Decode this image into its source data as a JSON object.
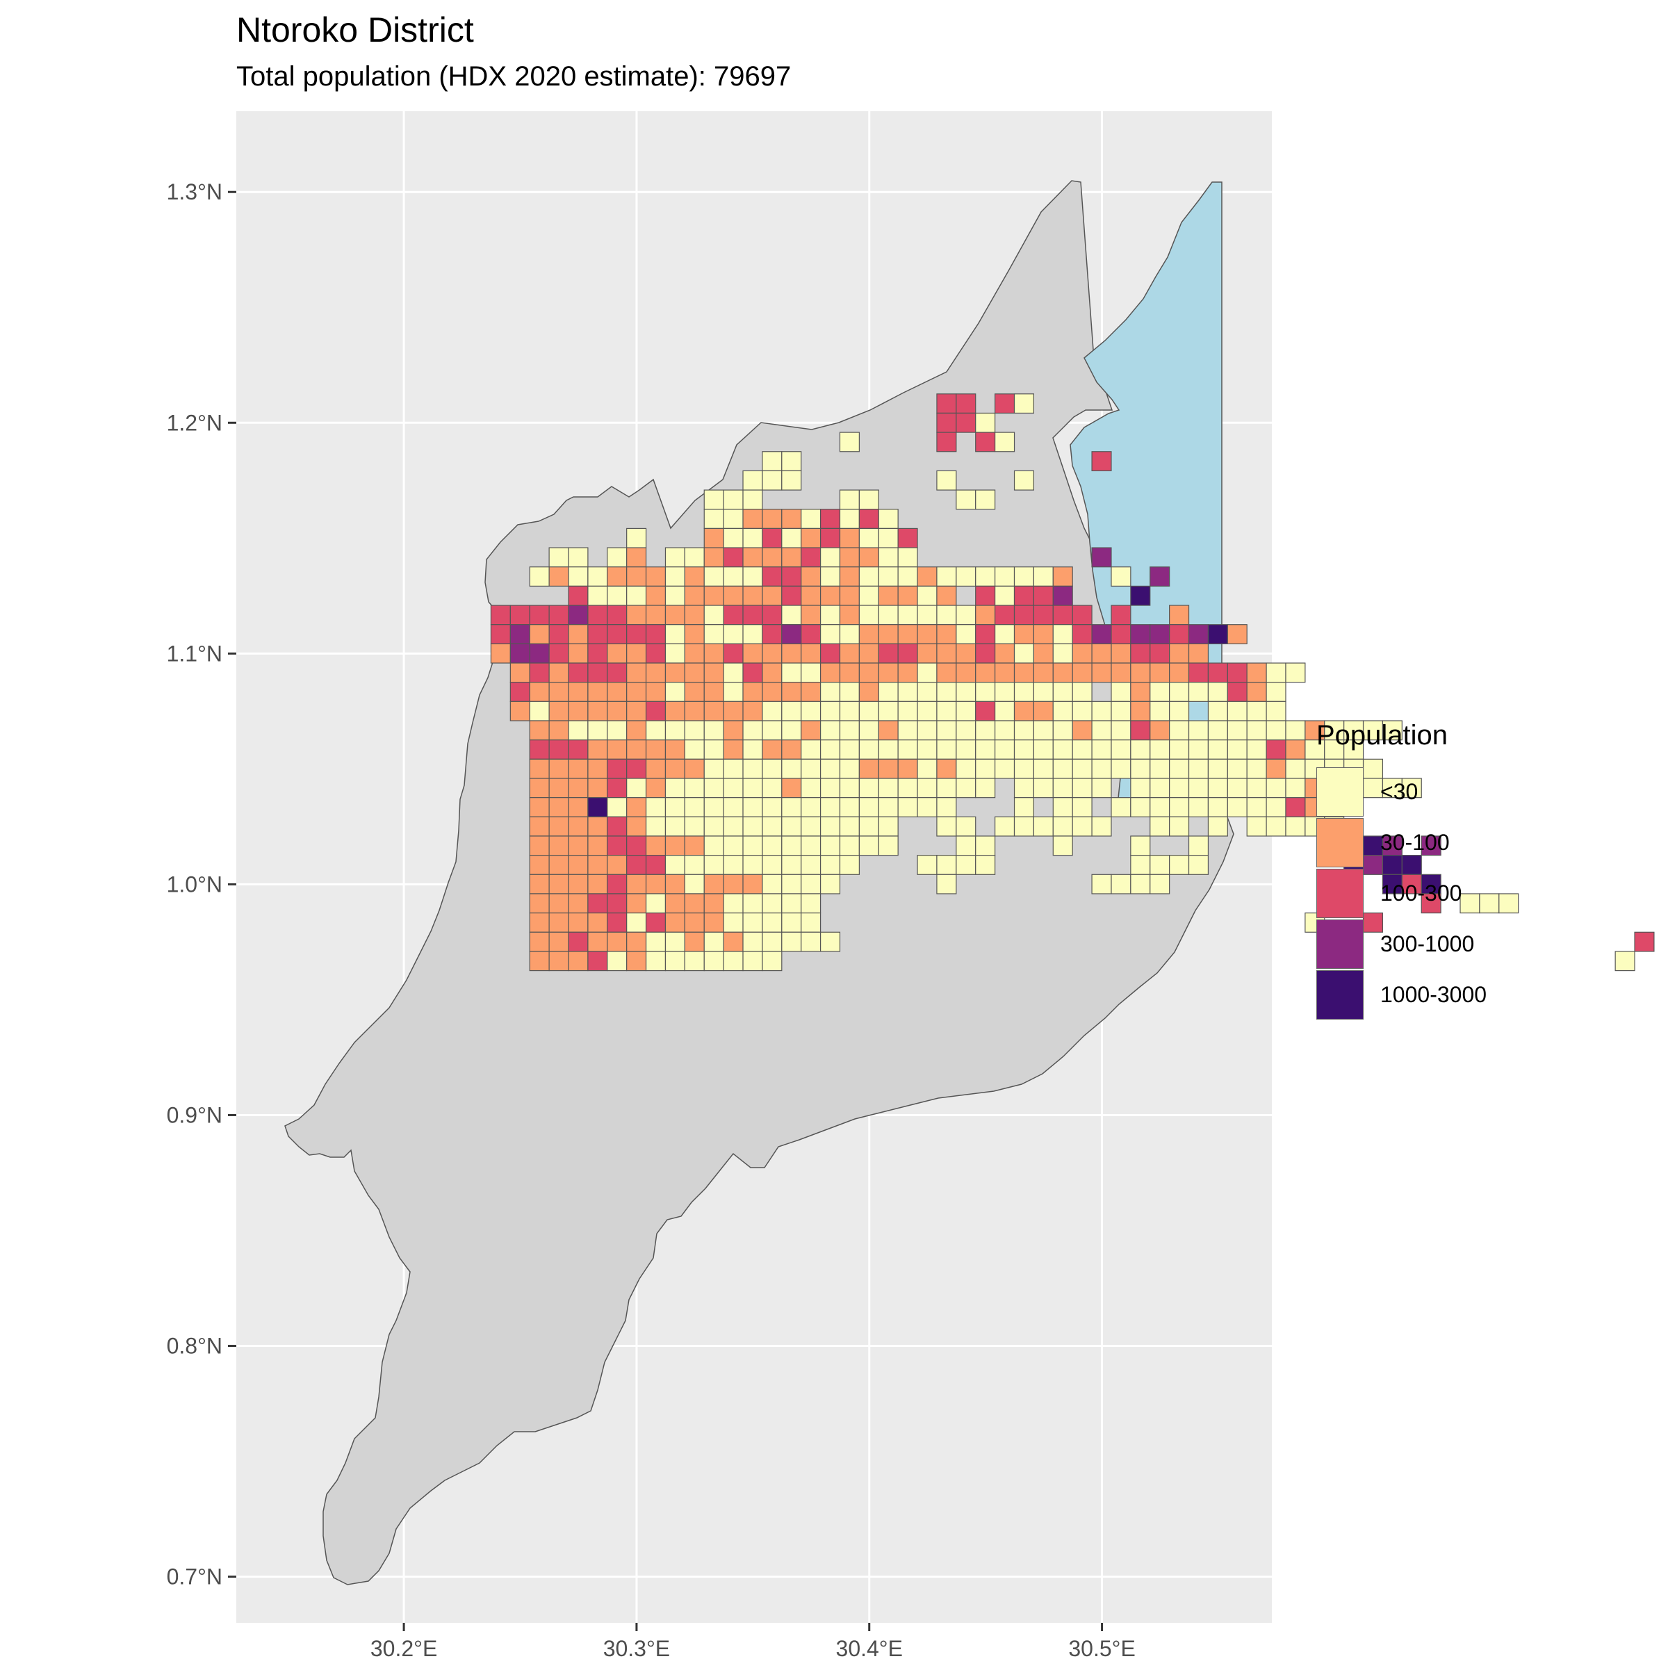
{
  "title": "Ntoroko District",
  "subtitle": "Total population (HDX 2020 estimate): 79697",
  "colors": {
    "panel_bg": "#ebebeb",
    "land": "#d3d3d3",
    "water": "#add8e6",
    "border": "#555555",
    "grid": "#ffffff"
  },
  "legend": {
    "title": "Population",
    "items": [
      {
        "label": "<30",
        "color": "#fcfdbf"
      },
      {
        "label": "30-100",
        "color": "#fc9f6c"
      },
      {
        "label": "100-300",
        "color": "#de4968"
      },
      {
        "label": "300-1000",
        "color": "#8c2981"
      },
      {
        "label": "1000-3000",
        "color": "#3b0f70"
      }
    ]
  },
  "chart_data": {
    "type": "heatmap",
    "title": "Ntoroko District",
    "subtitle": "Total population (HDX 2020 estimate): 79697",
    "x_ticks": [
      "30.2°E",
      "30.3°E",
      "30.4°E",
      "30.5°E"
    ],
    "y_ticks": [
      "0.7°N",
      "0.8°N",
      "0.9°N",
      "1.0°N",
      "1.1°N",
      "1.2°N",
      "1.3°N"
    ],
    "xlim": [
      30.128,
      30.573
    ],
    "ylim": [
      0.68,
      1.335
    ],
    "x_tick_values": [
      30.2,
      30.3,
      30.4,
      30.5
    ],
    "y_tick_values": [
      0.7,
      0.8,
      0.9,
      1.0,
      1.1,
      1.2,
      1.3
    ],
    "grid": true,
    "legend_position": "right",
    "cell_size_deg": 0.00833,
    "grid_origin": {
      "lon": 30.1708,
      "lat": 1.2125
    },
    "class_codes": {
      "1": "<30",
      "2": "30-100",
      "3": "100-300",
      "4": "300-1000",
      "5": "1000-3000"
    },
    "rows": [
      "00000000000000000000000000000000000000000000000000000000000000000000000000000000000000000000",
      "0000000000000000000000000000000000000000000000000000000000000000000000000000000000000000000000000000000000000000000000000000000000000000000000000000000000000000000000000000000000000000000000000000",
      "0000000000000000000000000000000000000000000000000000000000000000000000000000000000000000",
      "000000000000000000000000000000000000000000000000"
    ],
    "rows_by_lat": [
      "...............................33.31.......",
      "...............................331..........",
      "..........................1....3.31.........",
      "......................11...............3.....",
      ".....................111.......1...1.....",
      "...................111....11....11.........",
      "...................1122213131..............",
      "...............1...21131232113.................",
      "...........11.12.1123222312211.........4.......",
      "..........1211222121113321211121111112..1.4....",
      "............31112122222322212212.31334...5.....",
      "........3333433222213331212111111233333.3..2",
      "........342323333121113431122222131221343443452....",
      "........2443232231223222232233222321212223322.......",
      ".........23233322222132112222212222222222222333211......",
      ".........322222221221222211211111111111.121111321.........",
      ".........21222223222221111111111131221111211.1111.........",
      "..........221112111121112111211111111121132111111121111..........",
      "..........3332222211212211111111111111111111111132111.................",
      "..........22223322211111111222121111111111111111211111..................",
      "..........222231211111121111111111.11111.111111111232111.................",
      "..........2225121111111111111111...1.11.11111111132......................",
      "..........2222321111111111111..11.111111..11.1.11111.......................",
      "..........2222332221111111111...11...1...1..1........54.4...................",
      "..........22222331111111111...1111.......1111.......5455.................",
      "..........2222322212221111.....1.......1111...........535.................",
      "..........222332122211111...............................3.111..................",
      "..........222231322211111.........................1..3.........................",
      "..........2232221121211111.........................................3...........",
      "..........2223121111111...........................................1..12.........."
    ]
  }
}
